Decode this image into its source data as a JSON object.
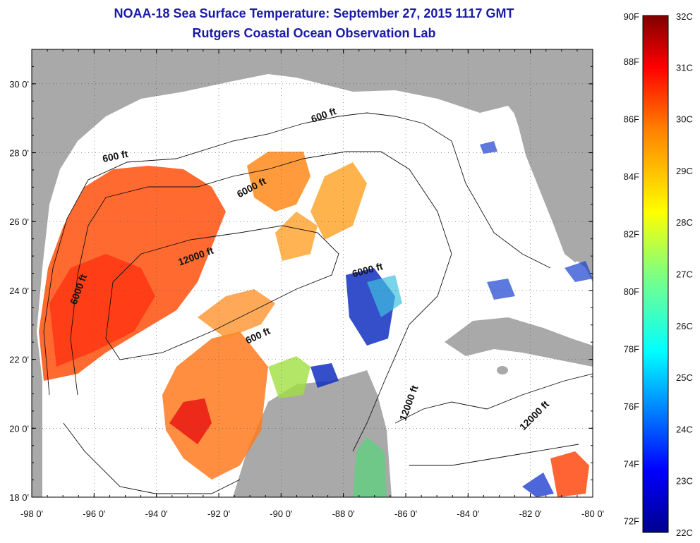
{
  "title": {
    "line1": "NOAA-18 Sea Surface Temperature:  September 27, 2015 1117 GMT",
    "line2": "Rutgers Coastal Ocean Observation Lab"
  },
  "map": {
    "lon_range": [
      -98,
      -80
    ],
    "lat_range": [
      18,
      31
    ],
    "lon_ticks": [
      {
        "value": -98,
        "label": "-98 0'"
      },
      {
        "value": -96,
        "label": "-96 0'"
      },
      {
        "value": -94,
        "label": "-94 0'"
      },
      {
        "value": -92,
        "label": "-92 0'"
      },
      {
        "value": -90,
        "label": "-90 0'"
      },
      {
        "value": -88,
        "label": "-88 0'"
      },
      {
        "value": -86,
        "label": "-86 0'"
      },
      {
        "value": -84,
        "label": "-84 0'"
      },
      {
        "value": -82,
        "label": "-82 0'"
      },
      {
        "value": -80,
        "label": "-80 0'"
      }
    ],
    "lat_ticks": [
      {
        "value": 18,
        "label": "18 0'"
      },
      {
        "value": 20,
        "label": "20 0'"
      },
      {
        "value": 22,
        "label": "22 0'"
      },
      {
        "value": 24,
        "label": "24 0'"
      },
      {
        "value": 26,
        "label": "26 0'"
      },
      {
        "value": 28,
        "label": "28 0'"
      },
      {
        "value": 30,
        "label": "30 0'"
      }
    ],
    "land_color": "#a9a9a9",
    "ocean_nodata_color": "#ffffff",
    "contour_labels": [
      {
        "text": "600 ft",
        "lon": -95.3,
        "lat": 27.8,
        "rotate": -12
      },
      {
        "text": "600 ft",
        "lon": -88.6,
        "lat": 29.0,
        "rotate": -20
      },
      {
        "text": "6000 ft",
        "lon": -90.9,
        "lat": 26.9,
        "rotate": -28
      },
      {
        "text": "12000 ft",
        "lon": -92.7,
        "lat": 24.9,
        "rotate": -20
      },
      {
        "text": "6000 ft",
        "lon": -96.4,
        "lat": 24.0,
        "rotate": -70
      },
      {
        "text": "6000 ft",
        "lon": -87.2,
        "lat": 24.5,
        "rotate": -15
      },
      {
        "text": "600 ft",
        "lon": -90.7,
        "lat": 22.6,
        "rotate": -25
      },
      {
        "text": "12000 ft",
        "lon": -85.8,
        "lat": 20.7,
        "rotate": -70
      },
      {
        "text": "12000 ft",
        "lon": -81.8,
        "lat": 20.3,
        "rotate": -45
      }
    ]
  },
  "colorbar": {
    "f_labels": [
      "90F",
      "88F",
      "86F",
      "84F",
      "82F",
      "80F",
      "78F",
      "76F",
      "74F",
      "72F"
    ],
    "f_values": [
      90,
      88,
      86,
      84,
      82,
      80,
      78,
      76,
      74,
      72
    ],
    "c_labels": [
      "32C",
      "31C",
      "30C",
      "29C",
      "28C",
      "27C",
      "26C",
      "25C",
      "24C",
      "23C",
      "22C"
    ],
    "c_values": [
      32,
      31,
      30,
      29,
      28,
      27,
      26,
      25,
      24,
      23,
      22
    ],
    "range_c": [
      22,
      32
    ],
    "colors": [
      "#00008f",
      "#0000ff",
      "#0080ff",
      "#00ffff",
      "#80ff80",
      "#ffff00",
      "#ff8000",
      "#ff0000",
      "#800000"
    ]
  }
}
